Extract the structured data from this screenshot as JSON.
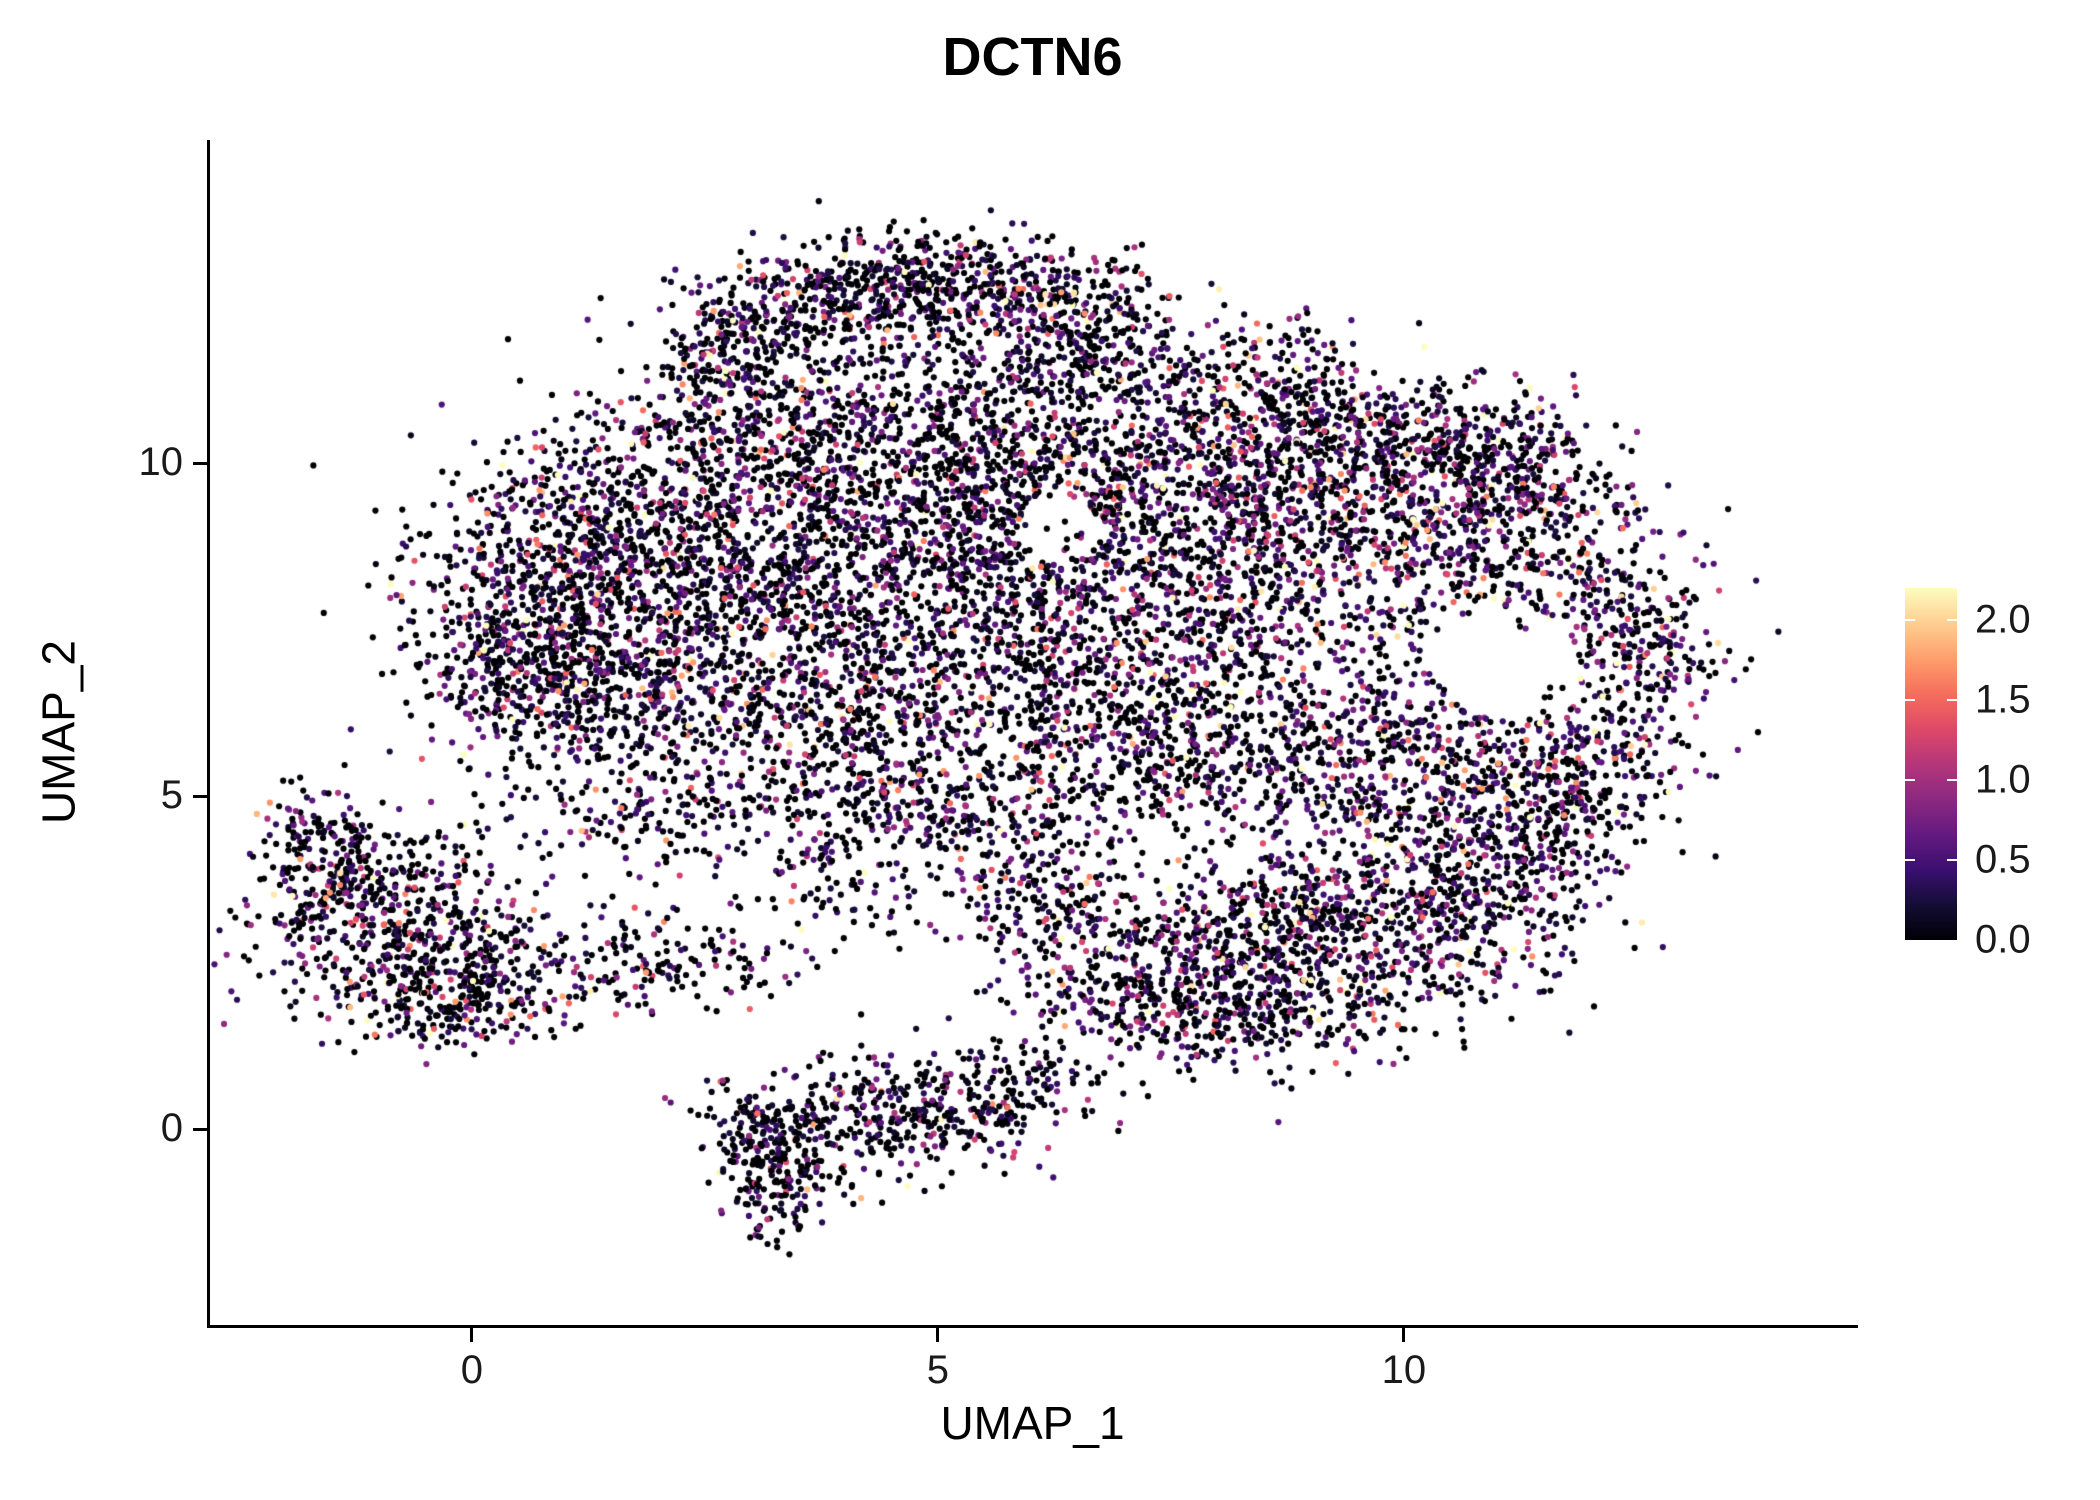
{
  "chart_data": {
    "type": "scatter",
    "title": "DCTN6",
    "xlabel": "UMAP_1",
    "ylabel": "UMAP_2",
    "xlim": [
      -2.81,
      14.84
    ],
    "ylim": [
      -2.93,
      14.86
    ],
    "xticks": [
      0,
      5,
      10
    ],
    "xtick_labels": [
      "0",
      "5",
      "10"
    ],
    "yticks": [
      0,
      5,
      10
    ],
    "ytick_labels": [
      "0",
      "5",
      "10"
    ],
    "grid": false,
    "background_color": "#ffffff",
    "axis_color": "#000000",
    "point_radius_px": 3.1,
    "seed": 42,
    "n_points_total": 15200,
    "legend": {
      "position": "right",
      "min": 0,
      "max": 2.2,
      "tick_values": [
        2.0,
        1.5,
        1.0,
        0.5,
        0.0
      ],
      "tick_labels": [
        "2.0",
        "1.5",
        "1.0",
        "0.5",
        "0.0"
      ]
    },
    "colormap": [
      {
        "t": 0.0,
        "color": "#000004"
      },
      {
        "t": 0.1,
        "color": "#140E36"
      },
      {
        "t": 0.2,
        "color": "#3B0F70"
      },
      {
        "t": 0.3,
        "color": "#641A80"
      },
      {
        "t": 0.4,
        "color": "#8C2981"
      },
      {
        "t": 0.5,
        "color": "#B5367A"
      },
      {
        "t": 0.6,
        "color": "#DE4968"
      },
      {
        "t": 0.7,
        "color": "#F66E5C"
      },
      {
        "t": 0.8,
        "color": "#FE9F6D"
      },
      {
        "t": 0.9,
        "color": "#FECE91"
      },
      {
        "t": 1.0,
        "color": "#FCFDBF"
      }
    ],
    "clusters": [
      {
        "x": 2.9,
        "y": 11.8,
        "sx": 0.45,
        "sy": 0.5,
        "n": 220,
        "z": 0.4,
        "s": 0.55
      },
      {
        "x": 3.9,
        "y": 12.5,
        "sx": 0.65,
        "sy": 0.45,
        "n": 300,
        "z": 0.4,
        "s": 0.55
      },
      {
        "x": 5.1,
        "y": 12.8,
        "sx": 0.6,
        "sy": 0.38,
        "n": 260,
        "z": 0.4,
        "s": 0.55
      },
      {
        "x": 6.2,
        "y": 12.4,
        "sx": 0.5,
        "sy": 0.45,
        "n": 200,
        "z": 0.4,
        "s": 0.55
      },
      {
        "x": 5.6,
        "y": 11.7,
        "sx": 0.9,
        "sy": 0.55,
        "n": 160,
        "z": 0.45,
        "s": 0.5
      },
      {
        "x": 6.9,
        "y": 11.9,
        "sx": 0.4,
        "sy": 0.5,
        "n": 120,
        "z": 0.45,
        "s": 0.5
      },
      {
        "x": 0.9,
        "y": 8.2,
        "sx": 0.8,
        "sy": 0.9,
        "n": 550,
        "z": 0.42,
        "s": 0.55
      },
      {
        "x": 2.3,
        "y": 9.1,
        "sx": 1.1,
        "sy": 1.1,
        "n": 750,
        "z": 0.42,
        "s": 0.55
      },
      {
        "x": 0.5,
        "y": 7.0,
        "sx": 0.6,
        "sy": 0.7,
        "n": 320,
        "z": 0.42,
        "s": 0.55
      },
      {
        "x": 1.9,
        "y": 6.4,
        "sx": 0.9,
        "sy": 0.8,
        "n": 450,
        "z": 0.42,
        "s": 0.55
      },
      {
        "x": 3.4,
        "y": 7.6,
        "sx": 1.1,
        "sy": 1.2,
        "n": 650,
        "z": 0.44,
        "s": 0.52
      },
      {
        "x": 4.7,
        "y": 9.4,
        "sx": 1.2,
        "sy": 1.1,
        "n": 600,
        "z": 0.44,
        "s": 0.52
      },
      {
        "x": 4.4,
        "y": 6.1,
        "sx": 0.9,
        "sy": 0.7,
        "n": 380,
        "z": 0.44,
        "s": 0.52
      },
      {
        "x": 5.6,
        "y": 7.9,
        "sx": 0.9,
        "sy": 1.1,
        "n": 450,
        "z": 0.44,
        "s": 0.52
      },
      {
        "x": 3.3,
        "y": 10.6,
        "sx": 0.9,
        "sy": 0.6,
        "n": 300,
        "z": 0.42,
        "s": 0.55
      },
      {
        "x": 5.8,
        "y": 10.3,
        "sx": 0.9,
        "sy": 0.8,
        "n": 350,
        "z": 0.46,
        "s": 0.5
      },
      {
        "x": 7.4,
        "y": 9.5,
        "sx": 1.2,
        "sy": 1.0,
        "n": 700,
        "z": 0.34,
        "s": 0.62
      },
      {
        "x": 8.7,
        "y": 8.1,
        "sx": 1.1,
        "sy": 1.1,
        "n": 650,
        "z": 0.34,
        "s": 0.62
      },
      {
        "x": 7.0,
        "y": 6.9,
        "sx": 0.9,
        "sy": 0.9,
        "n": 430,
        "z": 0.38,
        "s": 0.58
      },
      {
        "x": 9.7,
        "y": 9.7,
        "sx": 1.1,
        "sy": 0.8,
        "n": 450,
        "z": 0.34,
        "s": 0.62
      },
      {
        "x": 10.9,
        "y": 8.9,
        "sx": 0.8,
        "sy": 0.8,
        "n": 330,
        "z": 0.34,
        "s": 0.62
      },
      {
        "x": 12.1,
        "y": 7.8,
        "sx": 0.6,
        "sy": 0.9,
        "n": 280,
        "z": 0.32,
        "s": 0.65
      },
      {
        "x": 12.7,
        "y": 6.9,
        "sx": 0.35,
        "sy": 0.7,
        "n": 140,
        "z": 0.32,
        "s": 0.65
      },
      {
        "x": 10.2,
        "y": 5.9,
        "sx": 0.8,
        "sy": 0.55,
        "n": 220,
        "z": 0.38,
        "s": 0.58
      },
      {
        "x": 11.7,
        "y": 5.6,
        "sx": 0.6,
        "sy": 0.5,
        "n": 170,
        "z": 0.38,
        "s": 0.58
      },
      {
        "x": 8.2,
        "y": 5.8,
        "sx": 0.9,
        "sy": 0.5,
        "n": 260,
        "z": 0.4,
        "s": 0.55
      },
      {
        "x": 8.4,
        "y": 11.0,
        "sx": 0.8,
        "sy": 0.55,
        "n": 280,
        "z": 0.38,
        "s": 0.58
      },
      {
        "x": 9.9,
        "y": 10.5,
        "sx": 0.8,
        "sy": 0.5,
        "n": 240,
        "z": 0.36,
        "s": 0.6
      },
      {
        "x": 11.2,
        "y": 10.0,
        "sx": 0.5,
        "sy": 0.45,
        "n": 150,
        "z": 0.34,
        "s": 0.62
      },
      {
        "x": -0.8,
        "y": 3.1,
        "sx": 0.75,
        "sy": 0.75,
        "n": 500,
        "z": 0.42,
        "s": 0.55
      },
      {
        "x": -1.5,
        "y": 3.9,
        "sx": 0.4,
        "sy": 0.5,
        "n": 150,
        "z": 0.44,
        "s": 0.52
      },
      {
        "x": 0.1,
        "y": 2.3,
        "sx": 0.55,
        "sy": 0.5,
        "n": 200,
        "z": 0.42,
        "s": 0.55
      },
      {
        "x": -1.7,
        "y": 4.5,
        "sx": 0.25,
        "sy": 0.35,
        "n": 60,
        "z": 0.44,
        "s": 0.52
      },
      {
        "x": -0.2,
        "y": 1.8,
        "sx": 0.5,
        "sy": 0.3,
        "n": 110,
        "z": 0.44,
        "s": 0.52
      },
      {
        "x": 1.7,
        "y": 2.6,
        "sx": 0.5,
        "sy": 0.4,
        "n": 90,
        "z": 0.45,
        "s": 0.52
      },
      {
        "x": 2.7,
        "y": 2.5,
        "sx": 0.5,
        "sy": 0.35,
        "n": 60,
        "z": 0.45,
        "s": 0.52
      },
      {
        "x": 3.3,
        "y": -0.5,
        "sx": 0.32,
        "sy": 0.55,
        "n": 240,
        "z": 0.5,
        "s": 0.45
      },
      {
        "x": 4.2,
        "y": 0.3,
        "sx": 0.55,
        "sy": 0.5,
        "n": 210,
        "z": 0.48,
        "s": 0.48
      },
      {
        "x": 5.2,
        "y": 0.2,
        "sx": 0.55,
        "sy": 0.4,
        "n": 140,
        "z": 0.48,
        "s": 0.48
      },
      {
        "x": 6.0,
        "y": 0.7,
        "sx": 0.4,
        "sy": 0.4,
        "n": 100,
        "z": 0.48,
        "s": 0.48
      },
      {
        "x": 2.8,
        "y": 0.1,
        "sx": 0.3,
        "sy": 0.3,
        "n": 50,
        "z": 0.5,
        "s": 0.45
      },
      {
        "x": 8.0,
        "y": 2.6,
        "sx": 0.95,
        "sy": 0.75,
        "n": 450,
        "z": 0.36,
        "s": 0.6
      },
      {
        "x": 9.3,
        "y": 3.0,
        "sx": 0.95,
        "sy": 0.75,
        "n": 500,
        "z": 0.36,
        "s": 0.6
      },
      {
        "x": 10.5,
        "y": 3.5,
        "sx": 0.75,
        "sy": 0.75,
        "n": 380,
        "z": 0.36,
        "s": 0.6
      },
      {
        "x": 11.3,
        "y": 4.5,
        "sx": 0.55,
        "sy": 0.65,
        "n": 230,
        "z": 0.36,
        "s": 0.6
      },
      {
        "x": 7.0,
        "y": 2.0,
        "sx": 0.65,
        "sy": 0.45,
        "n": 180,
        "z": 0.4,
        "s": 0.55
      },
      {
        "x": 6.1,
        "y": 3.3,
        "sx": 0.6,
        "sy": 0.55,
        "n": 140,
        "z": 0.42,
        "s": 0.52
      },
      {
        "x": 5.7,
        "y": 4.3,
        "sx": 0.6,
        "sy": 0.5,
        "n": 120,
        "z": 0.42,
        "s": 0.52
      },
      {
        "x": 8.6,
        "y": 1.6,
        "sx": 0.8,
        "sy": 0.35,
        "n": 150,
        "z": 0.4,
        "s": 0.55
      },
      {
        "x": 12.0,
        "y": 4.9,
        "sx": 0.4,
        "sy": 0.4,
        "n": 90,
        "z": 0.36,
        "s": 0.6
      },
      {
        "x": 6.6,
        "y": 5.1,
        "sx": 1.3,
        "sy": 0.45,
        "n": 200,
        "z": 0.44,
        "s": 0.52
      },
      {
        "x": 9.6,
        "y": 4.9,
        "sx": 0.8,
        "sy": 0.4,
        "n": 140,
        "z": 0.4,
        "s": 0.55
      },
      {
        "x": 4.6,
        "y": 4.9,
        "sx": 0.5,
        "sy": 0.4,
        "n": 100,
        "z": 0.44,
        "s": 0.52
      },
      {
        "x": 2.1,
        "y": 4.7,
        "sx": 0.9,
        "sy": 0.4,
        "n": 140,
        "z": 0.44,
        "s": 0.52
      },
      {
        "x": 4.0,
        "y": 3.9,
        "sx": 0.45,
        "sy": 0.6,
        "n": 110,
        "z": 0.44,
        "s": 0.52
      }
    ],
    "holes": [
      {
        "x": 11.1,
        "y": 7.0,
        "rx": 0.75,
        "ry": 0.85
      },
      {
        "x": 6.3,
        "y": 9.0,
        "rx": 0.45,
        "ry": 0.5
      }
    ]
  }
}
